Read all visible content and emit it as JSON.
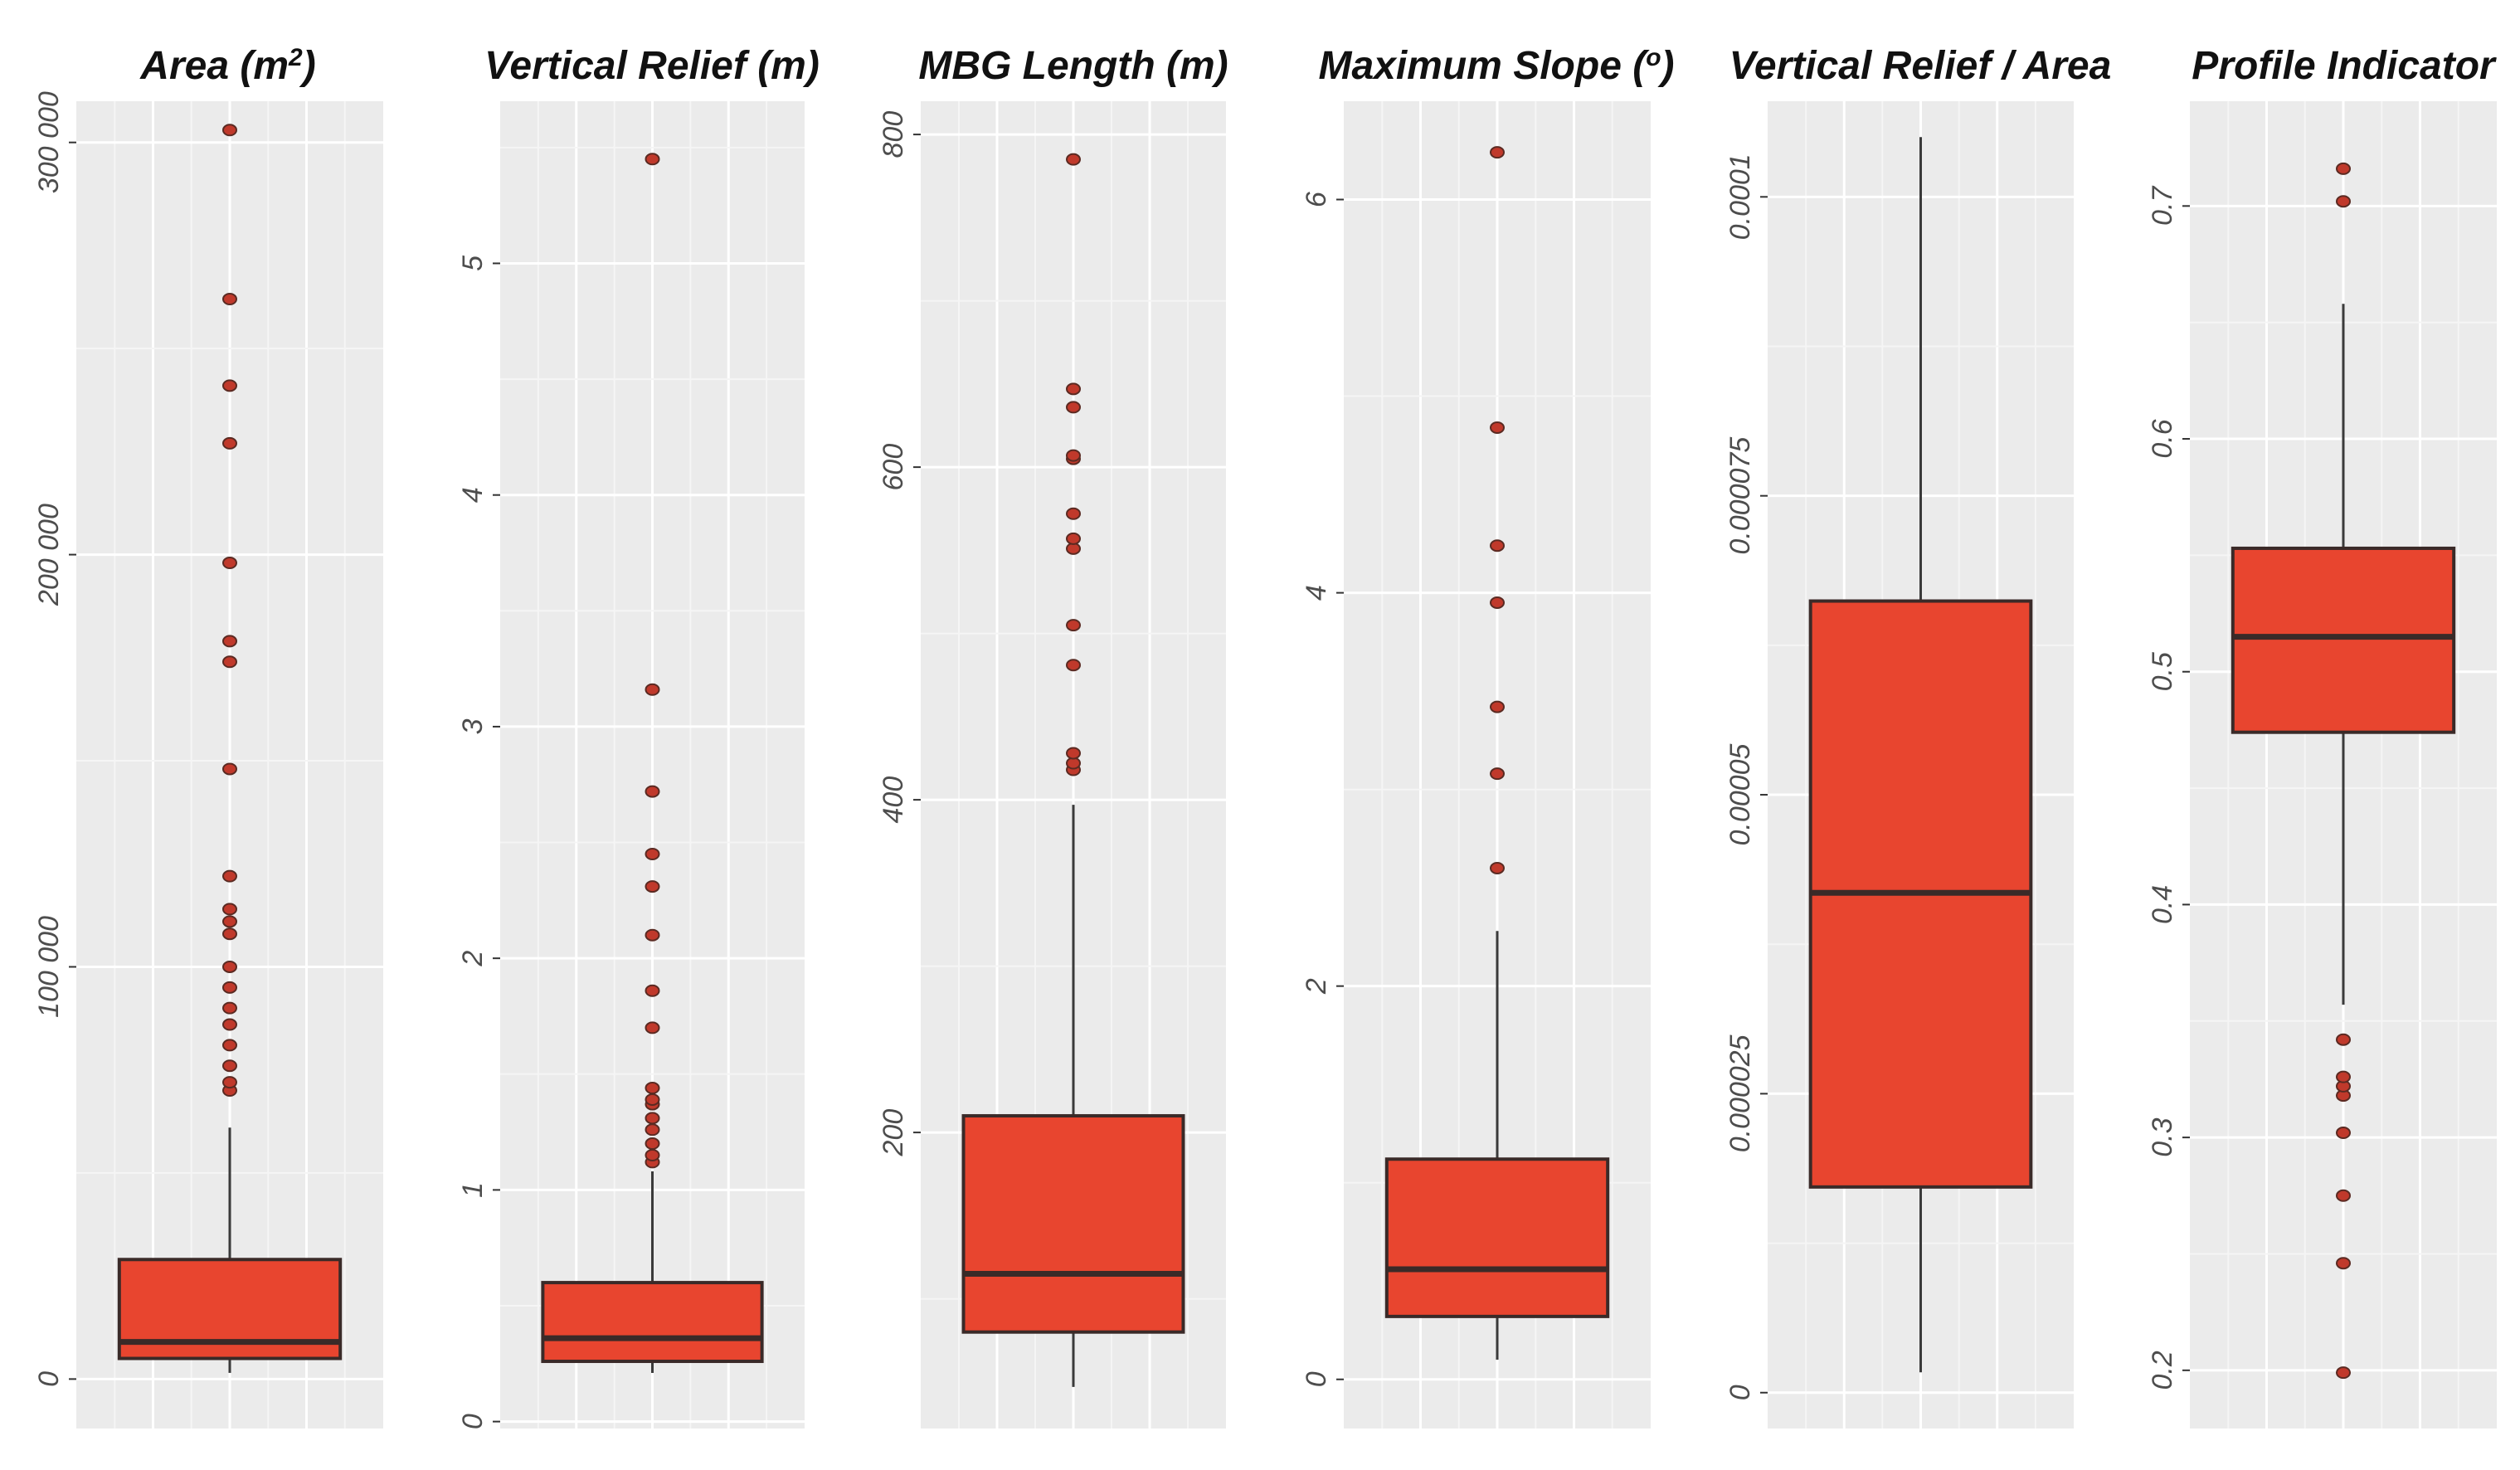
{
  "chart_data": [
    {
      "type": "box",
      "title": "Area (m²)",
      "title_parts": {
        "text": "Area (m",
        "superscript": "2",
        "suffix": ")"
      },
      "ylim": [
        -12000,
        310000
      ],
      "ticks": [
        0,
        100000,
        200000,
        300000
      ],
      "tick_labels": [
        "0",
        "100 000",
        "200 000",
        "300 000"
      ],
      "box": {
        "lower_whisker": 1500,
        "q1": 5000,
        "median": 9000,
        "q3": 29000,
        "upper_whisker": 61000
      },
      "outliers": [
        70000,
        72000,
        76000,
        81000,
        86000,
        90000,
        95000,
        100000,
        108000,
        111000,
        114000,
        122000,
        148000,
        174000,
        179000,
        198000,
        227000,
        241000,
        262000,
        303000
      ]
    },
    {
      "type": "box",
      "title": "Vertical Relief (m)",
      "ylim": [
        -0.03,
        5.7
      ],
      "ticks": [
        0,
        1,
        2,
        3,
        4,
        5
      ],
      "tick_labels": [
        "0",
        "1",
        "2",
        "3",
        "4",
        "5"
      ],
      "box": {
        "lower_whisker": 0.21,
        "q1": 0.26,
        "median": 0.36,
        "q3": 0.6,
        "upper_whisker": 1.08
      },
      "outliers": [
        1.12,
        1.15,
        1.2,
        1.26,
        1.31,
        1.37,
        1.39,
        1.44,
        1.7,
        1.86,
        2.1,
        2.31,
        2.45,
        2.72,
        3.16,
        5.45
      ]
    },
    {
      "type": "box",
      "title": "MBG Length (m)",
      "ylim": [
        22,
        820
      ],
      "ticks": [
        200,
        400,
        600,
        800
      ],
      "tick_labels": [
        "200",
        "400",
        "600",
        "800"
      ],
      "box": {
        "lower_whisker": 47,
        "q1": 80,
        "median": 115,
        "q3": 210,
        "upper_whisker": 397
      },
      "outliers": [
        418,
        422,
        428,
        481,
        505,
        551,
        557,
        572,
        605,
        607,
        636,
        647,
        785
      ]
    },
    {
      "type": "box",
      "title": "Maximum Slope (º)",
      "title_parts": {
        "text": "Maximum Slope (",
        "superscript": "o",
        "suffix": ")"
      },
      "ylim": [
        -0.25,
        6.5
      ],
      "ticks": [
        0,
        2,
        4,
        6
      ],
      "tick_labels": [
        "0",
        "2",
        "4",
        "6"
      ],
      "box": {
        "lower_whisker": 0.1,
        "q1": 0.32,
        "median": 0.56,
        "q3": 1.12,
        "upper_whisker": 2.28
      },
      "outliers": [
        2.6,
        3.08,
        3.42,
        3.95,
        4.24,
        4.84,
        6.24
      ]
    },
    {
      "type": "box",
      "title": "Vertical Relief / Area",
      "ylim": [
        -3e-06,
        0.000108
      ],
      "ticks": [
        0,
        2.5e-05,
        5e-05,
        7.5e-05,
        0.0001
      ],
      "tick_labels": [
        "0",
        "0.000025",
        "0.00005",
        "0.000075",
        "0.0001"
      ],
      "box": {
        "lower_whisker": 1.7e-06,
        "q1": 1.72e-05,
        "median": 4.18e-05,
        "q3": 6.62e-05,
        "upper_whisker": 0.000105
      },
      "outliers": []
    },
    {
      "type": "box",
      "title": "Profile Indicator",
      "ylim": [
        0.175,
        0.745
      ],
      "ticks": [
        0.2,
        0.3,
        0.4,
        0.5,
        0.6,
        0.7
      ],
      "tick_labels": [
        "0.2",
        "0.3",
        "0.4",
        "0.5",
        "0.6",
        "0.7"
      ],
      "box": {
        "lower_whisker": 0.357,
        "q1": 0.474,
        "median": 0.515,
        "q3": 0.553,
        "upper_whisker": 0.658
      },
      "outliers": [
        0.199,
        0.246,
        0.275,
        0.302,
        0.318,
        0.322,
        0.326,
        0.342,
        0.702,
        0.716
      ]
    }
  ],
  "colors": {
    "box_fill": "#E8452F",
    "box_stroke": "#3a2a28",
    "median": "#3a2a28",
    "whisker": "#3a3a3a",
    "outlier_fill": "#C0392B",
    "outlier_stroke": "#5a2a22",
    "panel_bg": "#EBEBEB",
    "grid_major": "#FFFFFF",
    "grid_minor": "#F5F5F5",
    "title": "#111111",
    "tick_text": "#4d4d4d",
    "tick_mark": "#333333"
  }
}
